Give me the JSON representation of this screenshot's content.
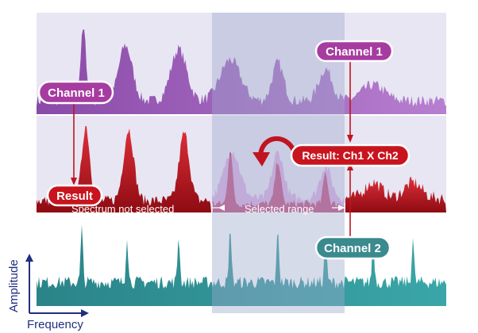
{
  "labels": {
    "channel1_right": "Channel 1",
    "channel1_left": "Channel 1",
    "result_product": "Result: Ch1 X Ch2",
    "result": "Result",
    "spectrum_not_selected": "Spectrum not selected",
    "selected_range": "Selected range",
    "channel2": "Channel 2",
    "y_axis": "Amplitude",
    "x_axis": "Frequency"
  },
  "colors": {
    "channel1": "#9955b5",
    "result": "#c0141e",
    "channel2": "#2e8f93",
    "panel_bg": "#e8e6f3",
    "selection": "#9ea9cc",
    "label_channel1": "#a63ca0",
    "label_result": "#c8141e",
    "label_channel2": "#3a8a8e",
    "axis": "#1f2f80"
  }
}
